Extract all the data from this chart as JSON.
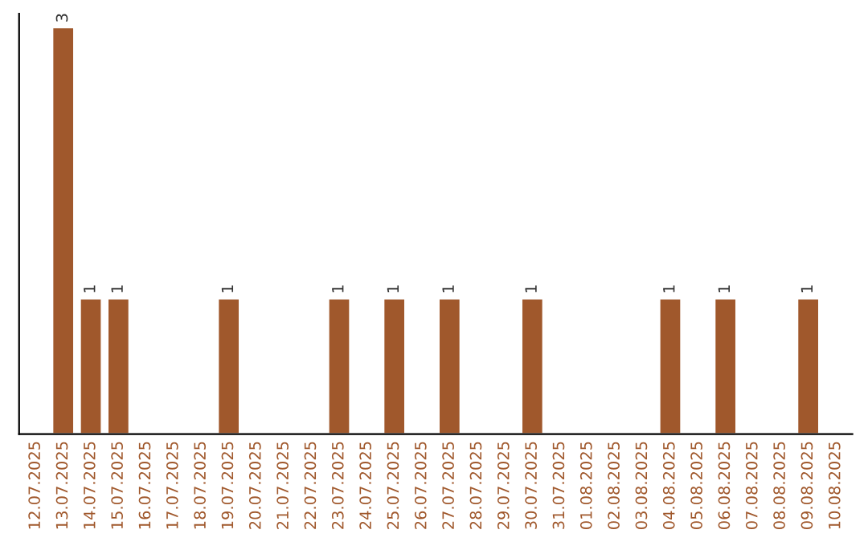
{
  "chart_data": {
    "type": "bar",
    "categories": [
      "12.07.2025",
      "13.07.2025",
      "14.07.2025",
      "15.07.2025",
      "16.07.2025",
      "17.07.2025",
      "18.07.2025",
      "19.07.2025",
      "20.07.2025",
      "21.07.2025",
      "22.07.2025",
      "23.07.2025",
      "24.07.2025",
      "25.07.2025",
      "26.07.2025",
      "27.07.2025",
      "28.07.2025",
      "29.07.2025",
      "30.07.2025",
      "31.07.2025",
      "01.08.2025",
      "02.08.2025",
      "03.08.2025",
      "04.08.2025",
      "05.08.2025",
      "06.08.2025",
      "07.08.2025",
      "08.08.2025",
      "09.08.2025",
      "10.08.2025"
    ],
    "values": [
      null,
      3,
      1,
      1,
      null,
      null,
      null,
      1,
      null,
      null,
      null,
      1,
      null,
      1,
      null,
      1,
      null,
      null,
      1,
      null,
      null,
      null,
      null,
      1,
      null,
      1,
      null,
      null,
      1,
      null
    ],
    "value_labels": [
      null,
      "3",
      "1",
      "1",
      null,
      null,
      null,
      "1",
      null,
      null,
      null,
      "1",
      null,
      "1",
      null,
      "1",
      null,
      null,
      "1",
      null,
      null,
      null,
      null,
      "1",
      null,
      "1",
      null,
      null,
      "1",
      null
    ],
    "color": "#a0582c",
    "ylim": [
      0,
      3.1
    ],
    "tick_labels": "x",
    "grid": false,
    "legend": false
  }
}
